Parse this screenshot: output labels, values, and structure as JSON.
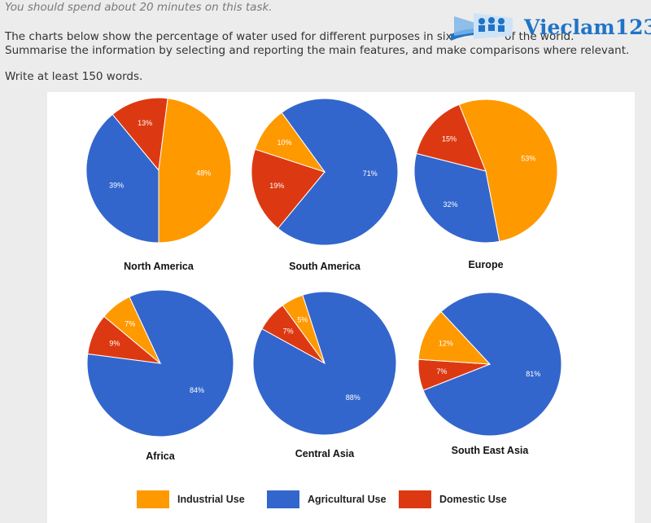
{
  "instructions": {
    "timing": "You should spend about 20 minutes on this task.",
    "line1": "The charts below show the percentage of water used for different purposes in six",
    "line1_tail": "of the world.",
    "line2": "Summarise the information by selecting and reporting the main features, and make comparisons where relevant.",
    "line3": "Write at least 150 words."
  },
  "logo": {
    "text": "Vieclam123"
  },
  "colors": {
    "industrial": "#ff9900",
    "agricultural": "#3366cc",
    "domestic": "#dc3912",
    "logo_blue": "#1f74c8"
  },
  "chart_data": {
    "type": "pie",
    "categories": [
      "Industrial Use",
      "Agricultural Use",
      "Domestic Use"
    ],
    "pies": [
      {
        "title": "North America",
        "values": [
          48,
          39,
          13
        ]
      },
      {
        "title": "South America",
        "values": [
          10,
          71,
          19
        ]
      },
      {
        "title": "Europe",
        "values": [
          53,
          32,
          15
        ]
      },
      {
        "title": "Africa",
        "values": [
          7,
          84,
          9
        ]
      },
      {
        "title": "Central Asia",
        "values": [
          5,
          88,
          7
        ]
      },
      {
        "title": "South East Asia",
        "values": [
          12,
          81,
          7
        ]
      }
    ],
    "legend": [
      "Industrial Use",
      "Agricultural Use",
      "Domestic Use"
    ],
    "legend_position": "bottom"
  }
}
